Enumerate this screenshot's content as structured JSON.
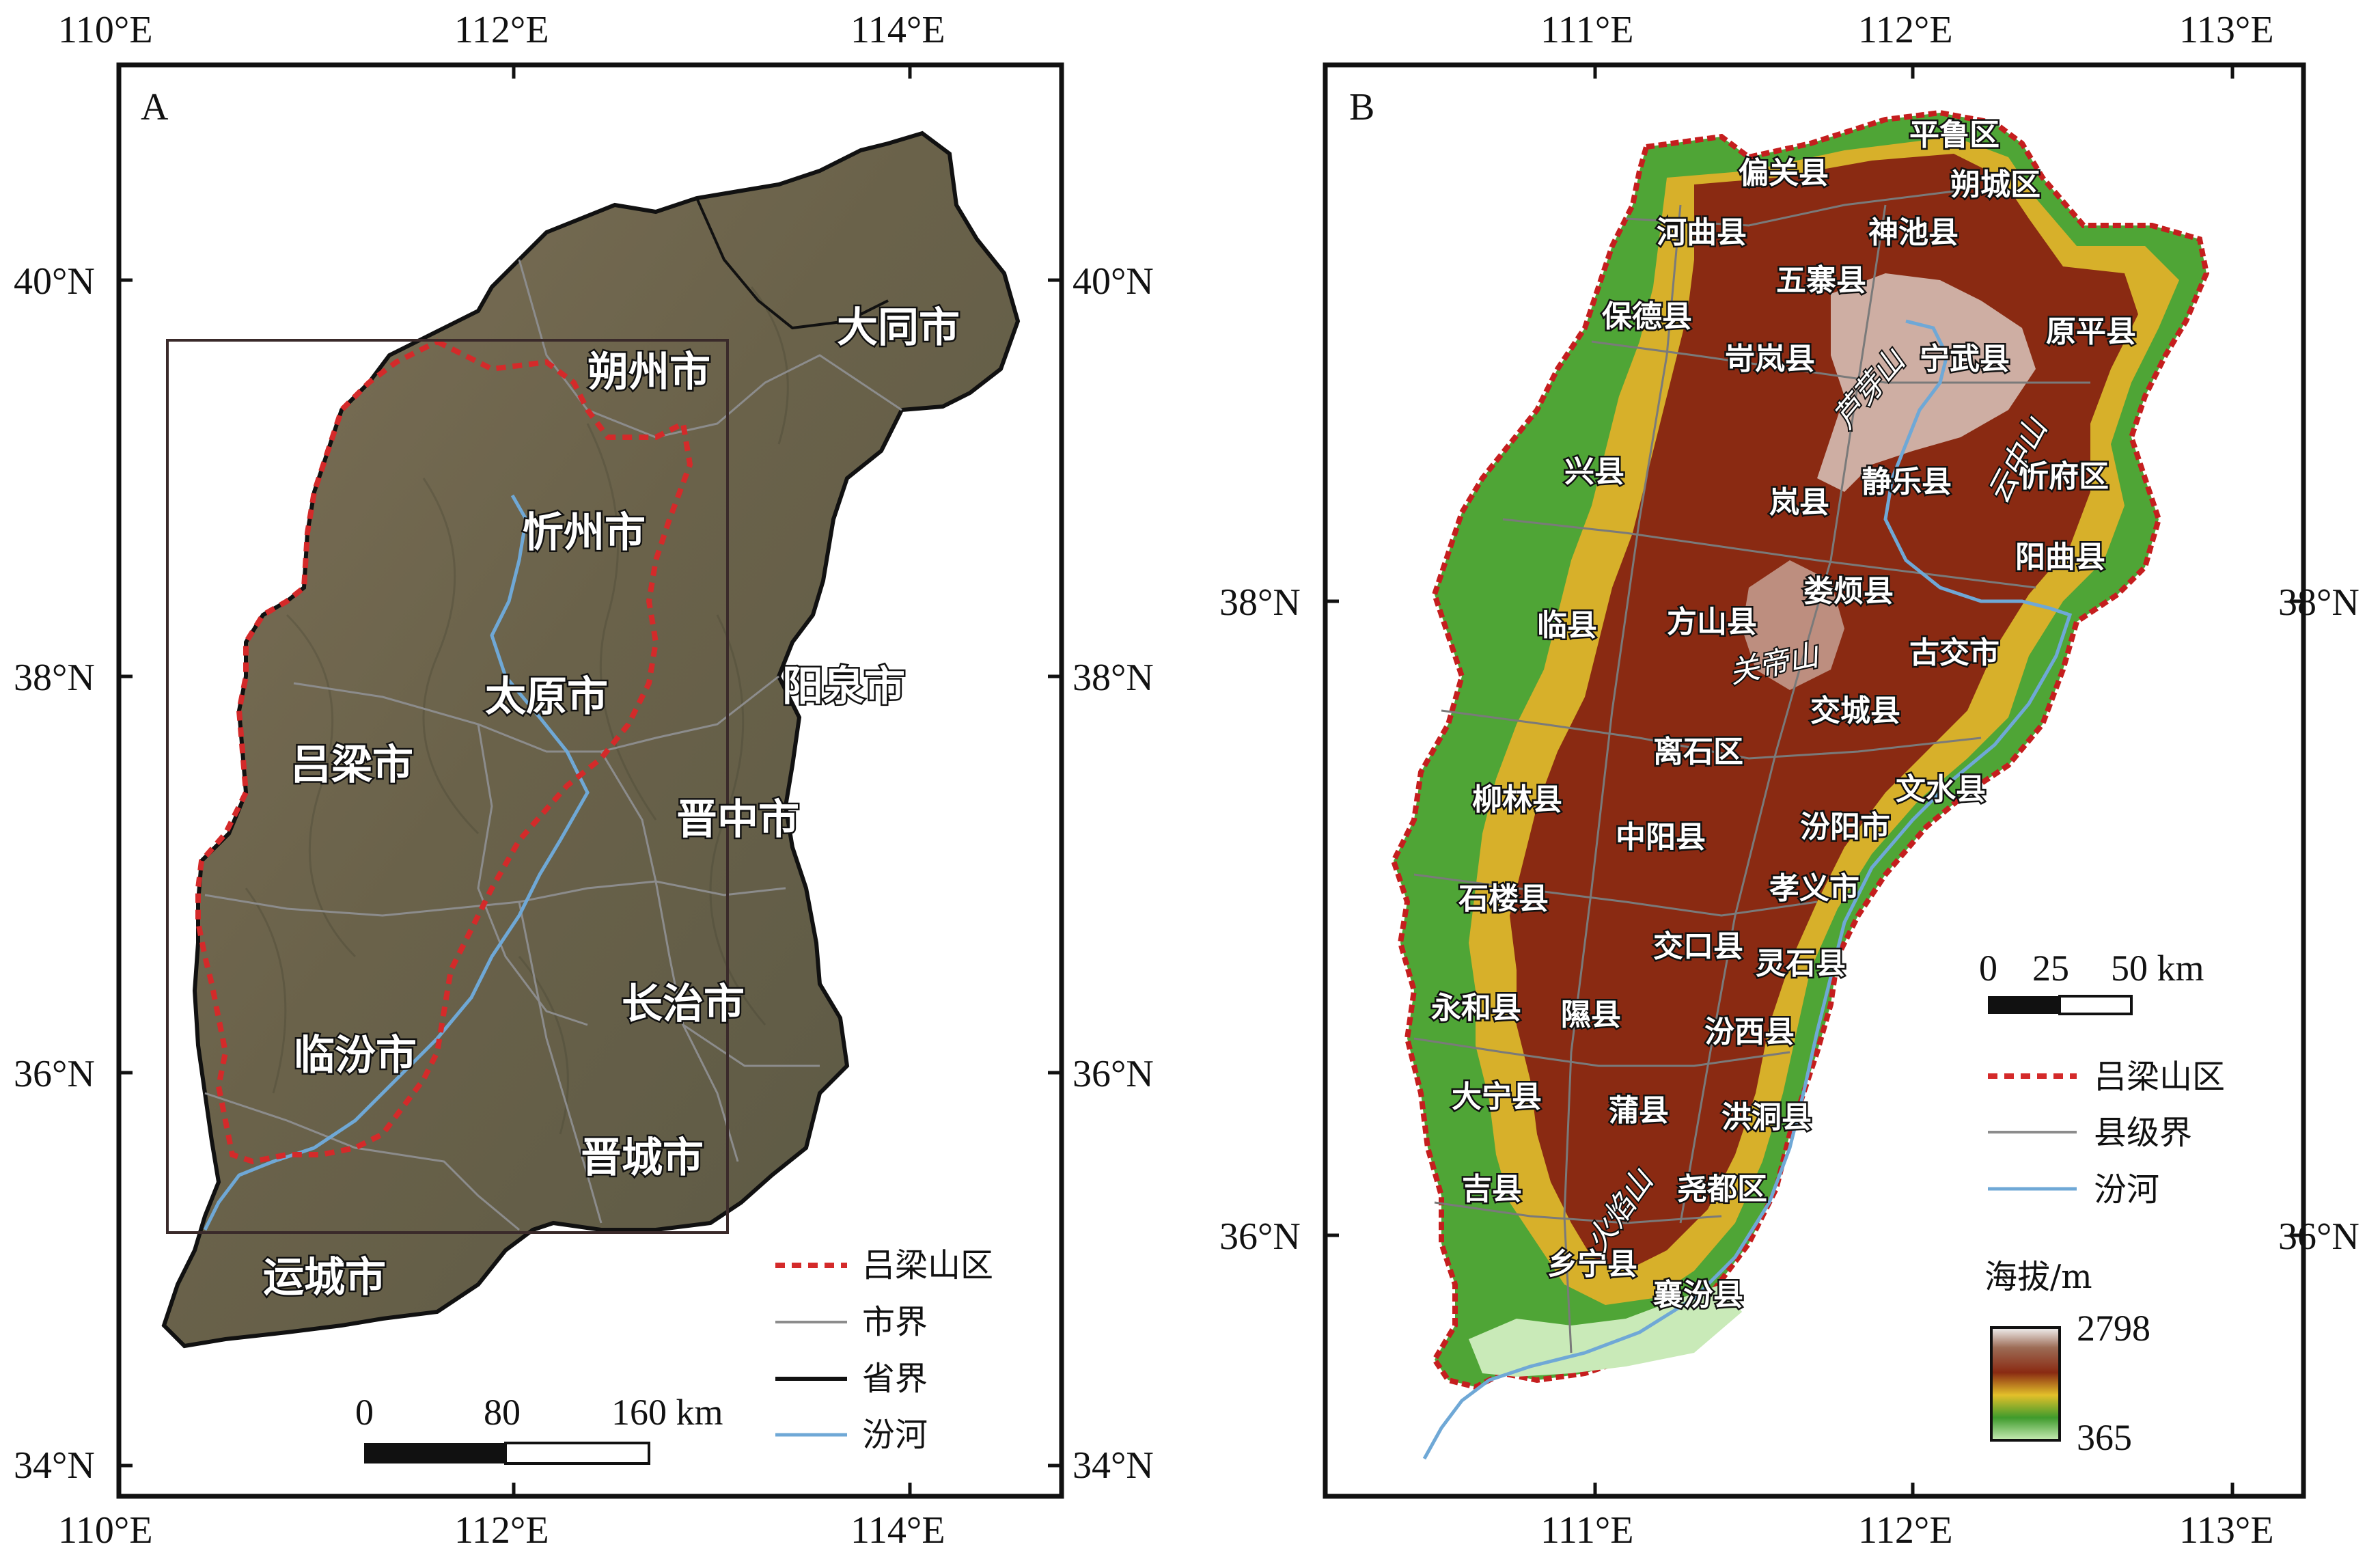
{
  "panel_a": {
    "letter": "A",
    "top_ticks": [
      "110°E",
      "112°E",
      "114°E"
    ],
    "bottom_ticks": [
      "110°E",
      "112°E",
      "114°E"
    ],
    "left_ticks": [
      "40°N",
      "38°N",
      "36°N",
      "34°N"
    ],
    "right_ticks": [
      "40°N",
      "38°N",
      "36°N",
      "34°N"
    ],
    "cities": {
      "shuozhou": "朔州市",
      "datong": "大同市",
      "xinzhou": "忻州市",
      "taiyuan": "太原市",
      "yangquan": "阳泉市",
      "lvliang": "吕梁市",
      "jinzhong": "晋中市",
      "changzhi": "长治市",
      "linfen": "临汾市",
      "jincheng": "晋城市",
      "yuncheng": "运城市"
    },
    "legend": {
      "region": "吕梁山区",
      "city_boundary": "市界",
      "province_boundary": "省界",
      "fen_river": "汾河"
    },
    "scale": {
      "zero": "0",
      "mid": "80",
      "end": "160 km"
    },
    "colors": {
      "region_line": "#d42a2a",
      "river": "#6fa8d6",
      "city_line": "#8c8c8c",
      "province_line": "#111111"
    }
  },
  "panel_b": {
    "letter": "B",
    "top_ticks": [
      "111°E",
      "112°E",
      "113°E"
    ],
    "bottom_ticks": [
      "111°E",
      "112°E",
      "113°E"
    ],
    "left_ticks": [
      "38°N",
      "36°N"
    ],
    "right_ticks": [
      "38°N",
      "36°N"
    ],
    "counties": {
      "pinglu": "平鲁区",
      "pianguan": "偏关县",
      "shuocheng": "朔城区",
      "hequ": "河曲县",
      "shenchi": "神池县",
      "wuzhai": "五寨县",
      "baode": "保德县",
      "kelan": "岢岚县",
      "ningwu": "宁武县",
      "yuanping": "原平县",
      "xing": "兴县",
      "jingle": "静乐县",
      "lan": "岚县",
      "xinfu": "忻府区",
      "yangqu": "阳曲县",
      "loufan": "娄烦县",
      "lin": "临县",
      "fangshan": "方山县",
      "gujiao": "古交市",
      "jiaocheng": "交城县",
      "lishi": "离石区",
      "wenshui": "文水县",
      "liulin": "柳林县",
      "zhongyang": "中阳县",
      "fenyang": "汾阳市",
      "xiaoyi": "孝义市",
      "shilou": "石楼县",
      "jiaokou": "交口县",
      "lingshi": "灵石县",
      "yonghe": "永和县",
      "xi": "隰县",
      "fenxi": "汾西县",
      "daning": "大宁县",
      "pu": "蒲县",
      "hongdong": "洪洞县",
      "ji": "吉县",
      "yaodu": "尧都区",
      "xiangning": "乡宁县",
      "xiangfen": "襄汾县"
    },
    "mountains": {
      "luya": "芦芽山",
      "yunzhong": "云中山",
      "guandi": "关帝山",
      "huoyan": "火焰山"
    },
    "scale": {
      "zero": "0",
      "mid": "25",
      "end": "50 km"
    },
    "legend": {
      "region": "吕梁山区",
      "county_boundary": "县级界",
      "fen_river": "汾河"
    },
    "elevation": {
      "title": "海拔/m",
      "max": "2798",
      "min": "365"
    },
    "colors": {
      "low": "#b9e3a6",
      "green": "#3f9b2c",
      "yellow": "#e3c02a",
      "brown": "#8a2a12",
      "high": "#f5f5f5"
    }
  }
}
